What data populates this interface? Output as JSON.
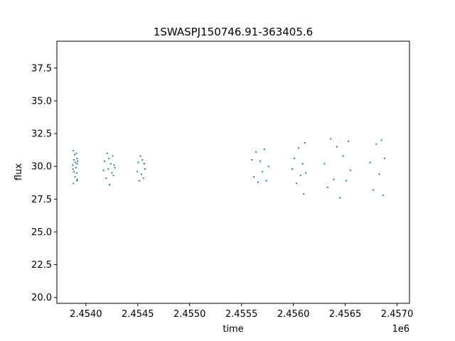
{
  "chart_data": {
    "type": "scatter",
    "title": "1SWASPJ150746.91-363405.6",
    "xlabel": "time",
    "ylabel": "flux",
    "x_offset_label": "1e6",
    "xlim": [
      2453720,
      2457120
    ],
    "ylim": [
      19.55,
      39.55
    ],
    "x_ticks": [
      2.454,
      2.4545,
      2.455,
      2.4555,
      2.456,
      2.4565,
      2.457
    ],
    "x_tick_labels": [
      "2.4540",
      "2.4545",
      "2.4550",
      "2.4555",
      "2.4560",
      "2.4565",
      "2.4570"
    ],
    "y_ticks": [
      20.0,
      22.5,
      25.0,
      27.5,
      30.0,
      32.5,
      35.0,
      37.5
    ],
    "y_tick_labels": [
      "20.0",
      "22.5",
      "25.0",
      "27.5",
      "30.0",
      "32.5",
      "35.0",
      "37.5"
    ],
    "grid": false,
    "marker_color": "#1f77b4",
    "series": [
      {
        "x": [
          2453874,
          2453876,
          2453878,
          2453880,
          2453884,
          2453886,
          2453892,
          2453895,
          2453898,
          2453905,
          2453908,
          2453912,
          2453915,
          2453910,
          2453914,
          2453918,
          2453920
        ],
        "y": [
          30.1,
          29.8,
          31.2,
          28.7,
          30.5,
          29.6,
          30.9,
          29.2,
          30.3,
          29.9,
          31.0,
          28.9,
          30.2,
          29.5,
          30.6,
          29.0,
          30.4
        ]
      },
      {
        "x": [
          2454170,
          2454180,
          2454195,
          2454205,
          2454215,
          2454222,
          2454228,
          2454240,
          2454250,
          2454258,
          2454265,
          2454272,
          2454278
        ],
        "y": [
          29.7,
          30.4,
          29.1,
          31.0,
          29.8,
          30.6,
          28.6,
          30.2,
          29.5,
          30.8,
          29.3,
          30.1,
          29.9
        ]
      },
      {
        "x": [
          2454495,
          2454505,
          2454515,
          2454525,
          2454535,
          2454545,
          2454555,
          2454562,
          2454568
        ],
        "y": [
          29.6,
          30.3,
          28.9,
          30.8,
          29.4,
          30.5,
          29.1,
          30.2,
          29.8
        ]
      },
      {
        "x": [
          2455600,
          2455620,
          2455640,
          2455660,
          2455680,
          2455700,
          2455720,
          2455740,
          2455760
        ],
        "y": [
          30.5,
          29.2,
          31.1,
          28.8,
          30.4,
          29.6,
          31.3,
          28.9,
          30.0
        ]
      },
      {
        "x": [
          2455990,
          2456010,
          2456030,
          2456050,
          2456070,
          2456090,
          2456100,
          2456110,
          2456120
        ],
        "y": [
          29.8,
          30.6,
          28.7,
          31.4,
          29.3,
          30.2,
          27.9,
          31.8,
          29.5
        ]
      },
      {
        "x": [
          2456300,
          2456330,
          2456360,
          2456390,
          2456420,
          2456450,
          2456480,
          2456510,
          2456530,
          2456550
        ],
        "y": [
          30.2,
          28.4,
          32.1,
          29.0,
          31.5,
          27.6,
          30.8,
          28.9,
          31.9,
          29.7
        ]
      },
      {
        "x": [
          2456740,
          2456770,
          2456800,
          2456830,
          2456850,
          2456865,
          2456880
        ],
        "y": [
          30.3,
          28.2,
          31.7,
          29.4,
          32.0,
          27.8,
          30.6
        ]
      }
    ]
  }
}
